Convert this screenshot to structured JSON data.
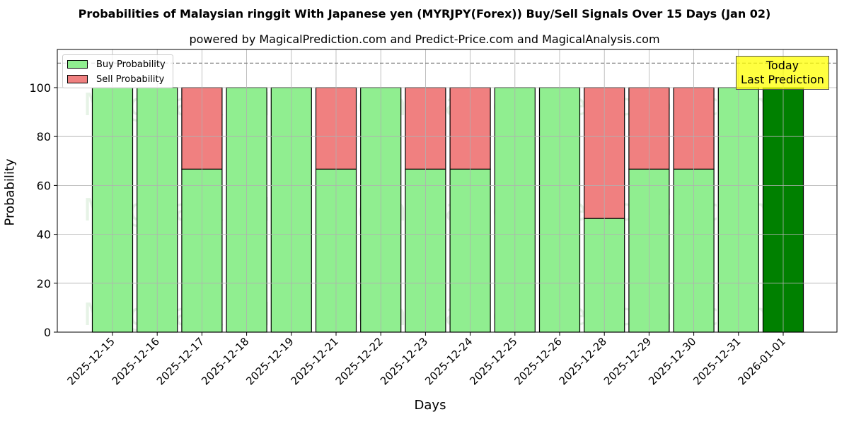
{
  "header": {
    "title": "Probabilities of Malaysian ringgit With Japanese yen (MYRJPY(Forex)) Buy/Sell Signals Over 15 Days (Jan 02)",
    "subtitle": "powered by MagicalPrediction.com and Predict-Price.com and MagicalAnalysis.com"
  },
  "legend": {
    "buy_label": "Buy Probability",
    "sell_label": "Sell Probability"
  },
  "annotation": {
    "line1": "Today",
    "line2": "Last Prediction"
  },
  "watermarks": [
    "MagicalAnalysis.com",
    "MagicalPrediction.com"
  ],
  "colors": {
    "buy": "#90ee90",
    "sell": "#f08080",
    "today": "#008000",
    "annotation_bg": "#ffff00",
    "grid": "#b0b0b0"
  },
  "chart_data": {
    "type": "bar",
    "stacked": true,
    "title": "Probabilities of Malaysian ringgit With Japanese yen (MYRJPY(Forex)) Buy/Sell Signals Over 15 Days (Jan 02)",
    "subtitle": "powered by MagicalPrediction.com and Predict-Price.com and MagicalAnalysis.com",
    "xlabel": "Days",
    "ylabel": "Probability",
    "ylim": [
      0,
      115.6
    ],
    "yticks": [
      0,
      20,
      40,
      60,
      80,
      100
    ],
    "grid": true,
    "legend_position": "upper left",
    "reference_line": {
      "y": 110,
      "style": "dashed",
      "color": "#808080"
    },
    "categories": [
      "2025-12-15",
      "2025-12-16",
      "2025-12-17",
      "2025-12-18",
      "2025-12-19",
      "2025-12-21",
      "2025-12-22",
      "2025-12-23",
      "2025-12-24",
      "2025-12-25",
      "2025-12-26",
      "2025-12-28",
      "2025-12-29",
      "2025-12-30",
      "2025-12-31",
      "2026-01-01"
    ],
    "series": [
      {
        "name": "Buy Probability",
        "values": [
          100,
          100,
          66.67,
          100,
          100,
          66.67,
          100,
          66.67,
          66.67,
          100,
          100,
          46.5,
          66.67,
          66.67,
          100,
          100
        ]
      },
      {
        "name": "Sell Probability",
        "values": [
          0,
          0,
          33.33,
          0,
          0,
          33.33,
          0,
          33.33,
          33.33,
          0,
          0,
          53.5,
          33.33,
          33.33,
          0,
          0
        ]
      }
    ],
    "highlight_last": {
      "category": "2026-01-01",
      "color": "#008000",
      "annotation": "Today\nLast Prediction"
    }
  }
}
